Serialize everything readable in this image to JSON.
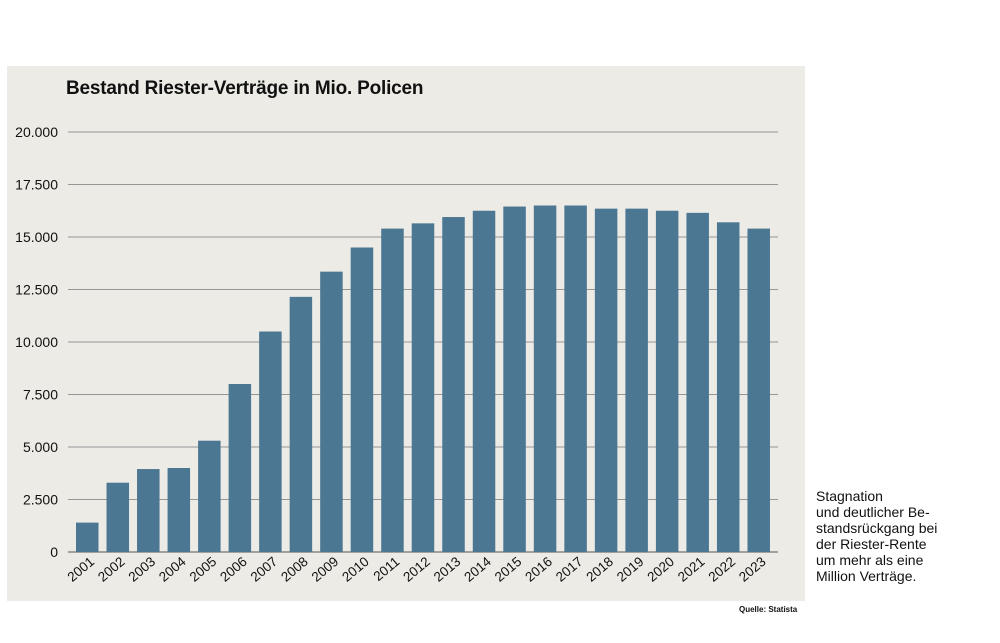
{
  "chart_data": {
    "type": "bar",
    "title": "Bestand Riester-Verträge in Mio. Policen",
    "xlabel": "",
    "ylabel": "",
    "categories": [
      "2001",
      "2002",
      "2003",
      "2004",
      "2005",
      "2006",
      "2007",
      "2008",
      "2009",
      "2010",
      "2011",
      "2012",
      "2013",
      "2014",
      "2015",
      "2016",
      "2017",
      "2018",
      "2019",
      "2020",
      "2021",
      "2022",
      "2023"
    ],
    "values": [
      1400,
      3300,
      3950,
      4000,
      5300,
      8000,
      10500,
      12150,
      13350,
      14500,
      15400,
      15650,
      15950,
      16250,
      16450,
      16500,
      16500,
      16350,
      16350,
      16250,
      16150,
      15700,
      15400
    ],
    "ylim": [
      0,
      20000
    ],
    "yticks": [
      0,
      2500,
      5000,
      7500,
      10000,
      12500,
      15000,
      17500,
      20000
    ],
    "ytick_labels": [
      "0",
      "2.500",
      "5.000",
      "7.500",
      "10.000",
      "12.500",
      "15.000",
      "17.500",
      "20.000"
    ],
    "grid": true,
    "bar_color": "#4b7793",
    "background_color": "#ecebe6"
  },
  "caption_lines": [
    "Stagnation",
    "und deutlicher Be-",
    "standsrückgang bei",
    "der Riester-Rente",
    "um mehr als eine",
    "Million Verträge."
  ],
  "source": "Quelle: Statista"
}
